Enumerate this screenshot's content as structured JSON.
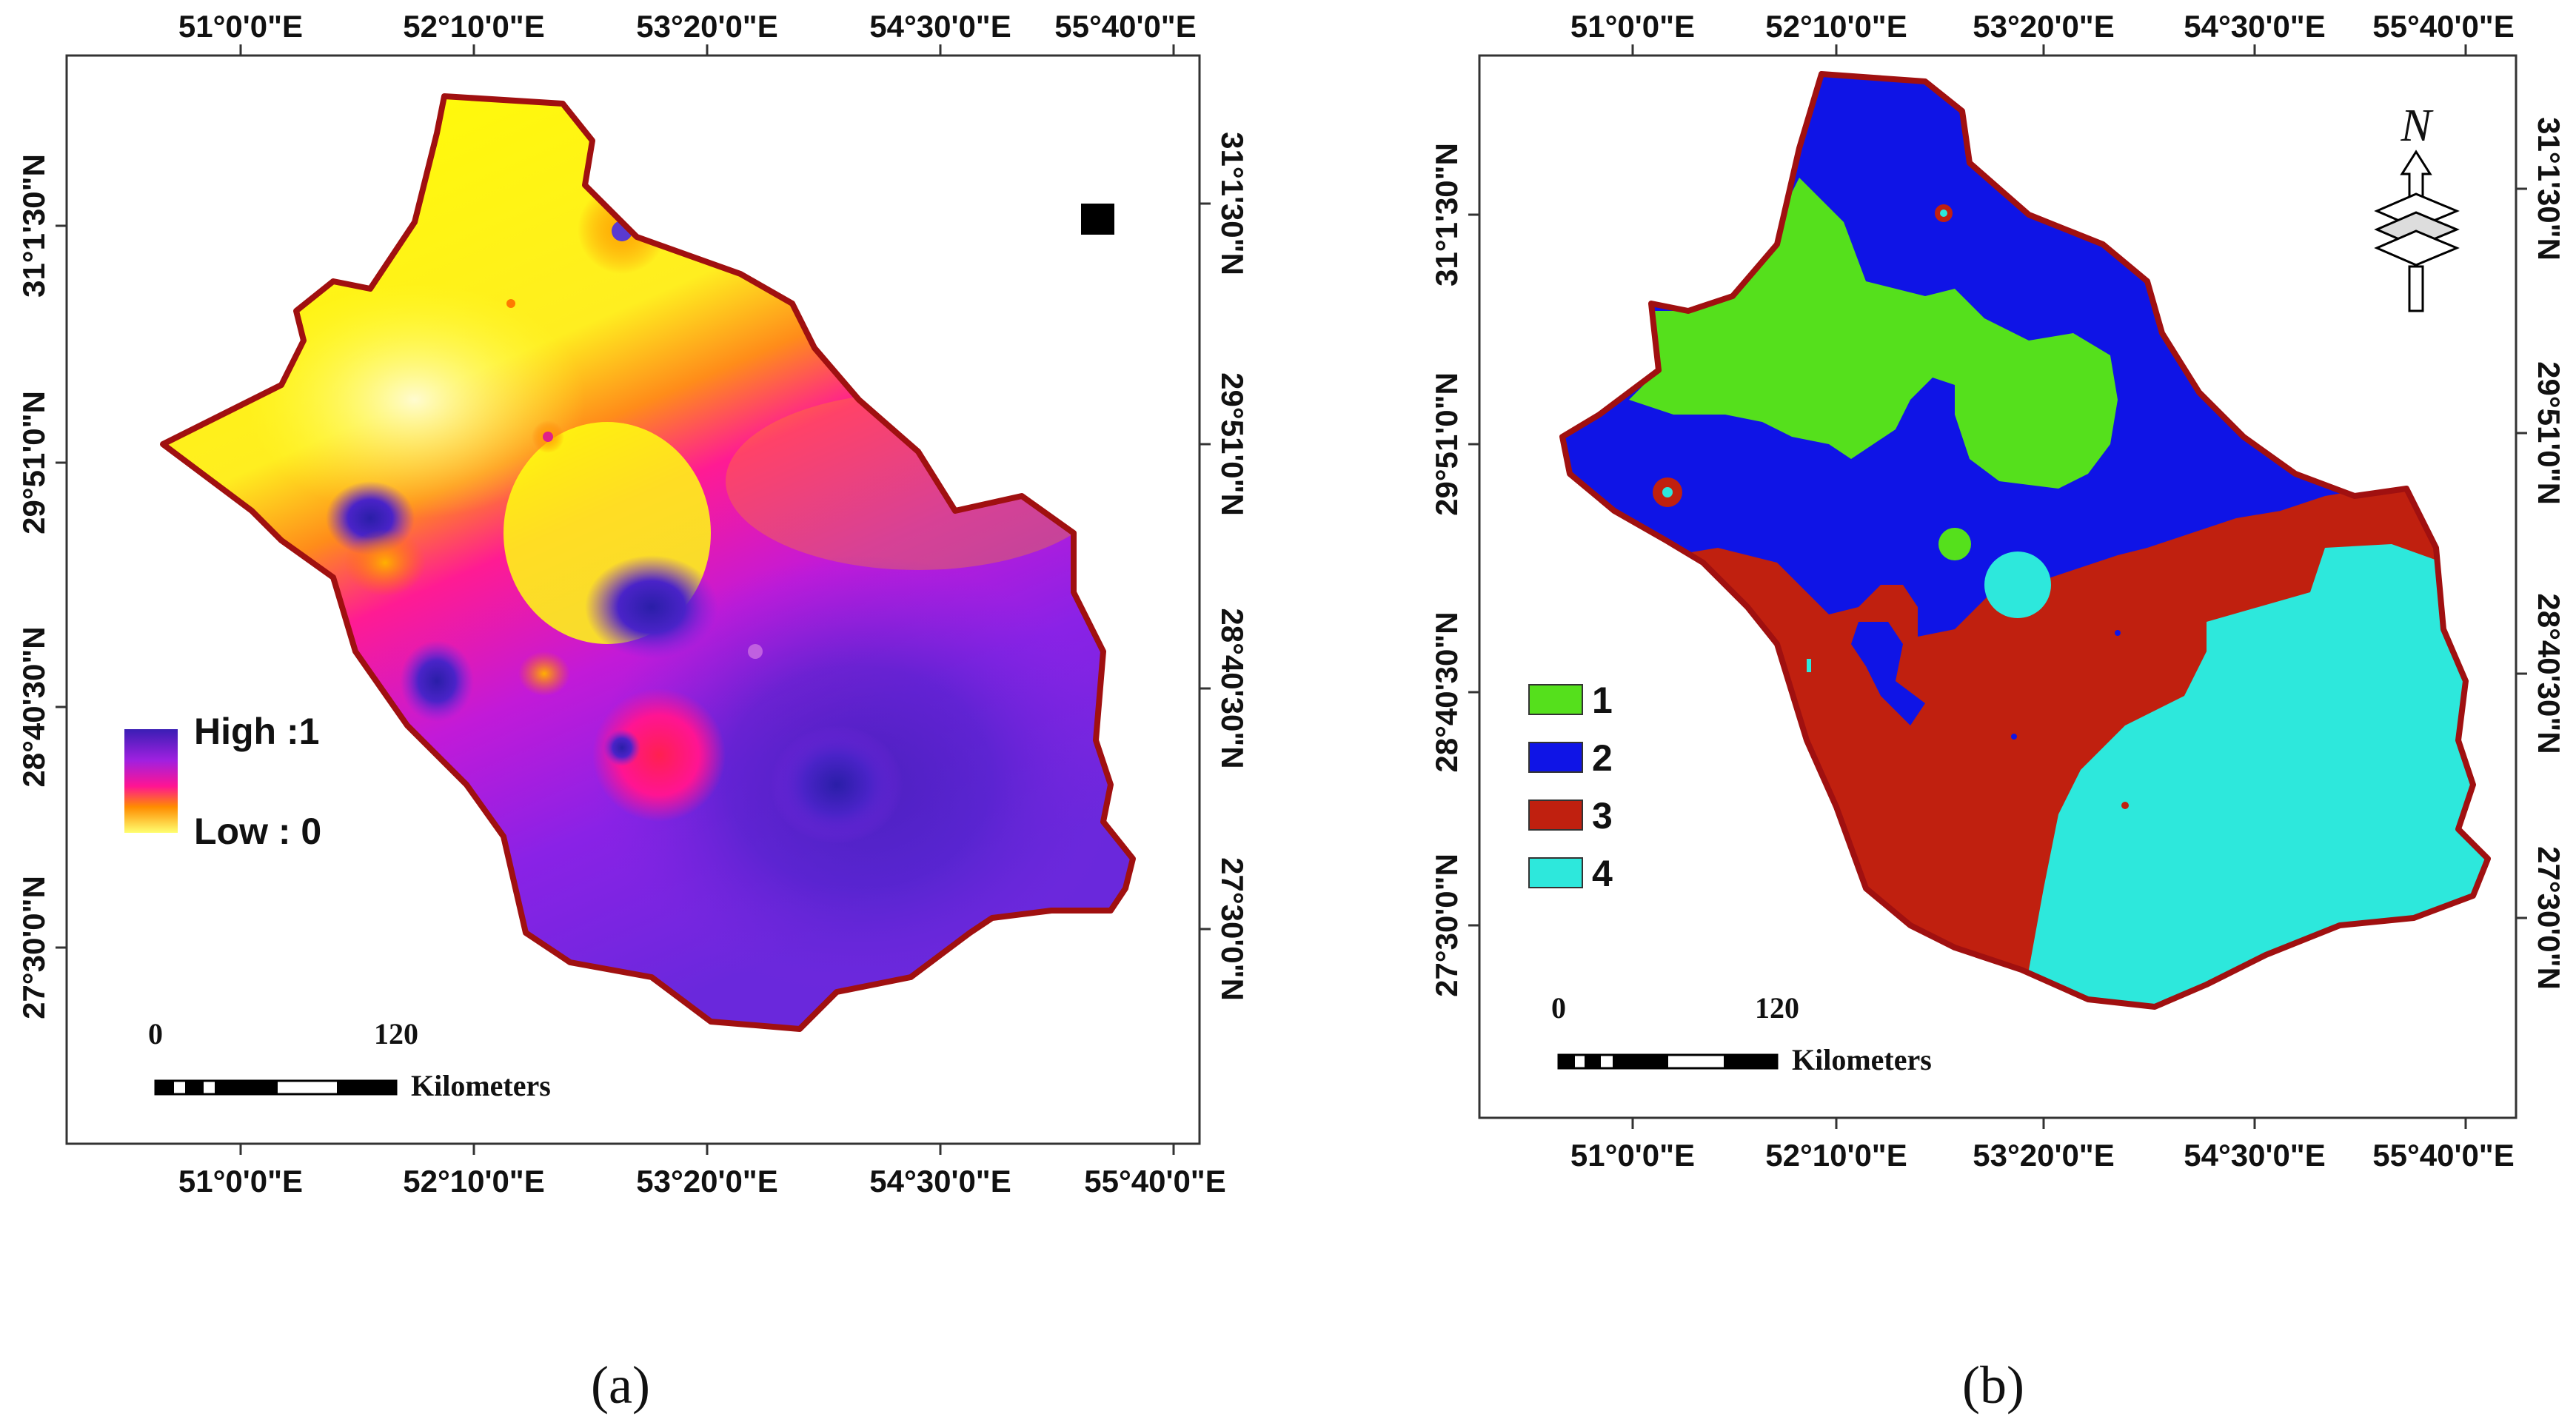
{
  "panel_a": {
    "caption": "(a)",
    "top_lon_labels": [
      "51°0'0\"E",
      "52°10'0\"E",
      "53°20'0\"E",
      "54°30'0\"E",
      "55°40'0\"E"
    ],
    "bottom_lon_labels": [
      "51°0'0\"E",
      "52°10'0\"E",
      "53°20'0\"E",
      "54°30'0\"E",
      "55°40'0\"E"
    ],
    "left_lat_labels": [
      "31°1'30\"N",
      "29°51'0\"N",
      "28°40'30\"N",
      "27°30'0\"N"
    ],
    "right_lat_labels": [
      "31°1'30\"N",
      "29°51'0\"N",
      "28°40'30\"N",
      "27°30'0\"N"
    ],
    "legend": {
      "high": "High :1",
      "low": "Low : 0"
    },
    "scale_bar": {
      "start": "0",
      "end": "120",
      "unit": "Kilometers"
    },
    "colors": {
      "high": "#3a1eb4",
      "mid": "#ff1493",
      "low": "#ffff00",
      "boundary": "#a01010"
    }
  },
  "panel_b": {
    "caption": "(b)",
    "top_lon_labels": [
      "51°0'0\"E",
      "52°10'0\"E",
      "53°20'0\"E",
      "54°30'0\"E",
      "55°40'0\"E"
    ],
    "bottom_lon_labels": [
      "51°0'0\"E",
      "52°10'0\"E",
      "53°20'0\"E",
      "54°30'0\"E",
      "55°40'0\"E"
    ],
    "left_lat_labels": [
      "31°1'30\"N",
      "29°51'0\"N",
      "28°40'30\"N",
      "27°30'0\"N"
    ],
    "right_lat_labels": [
      "31°1'30\"N",
      "29°51'0\"N",
      "28°40'30\"N",
      "27°30'0\"N"
    ],
    "north_arrow": "N",
    "legend_items": [
      {
        "label": "1",
        "color": "#55e01c"
      },
      {
        "label": "2",
        "color": "#0f14e6"
      },
      {
        "label": "3",
        "color": "#c0200f"
      },
      {
        "label": "4",
        "color": "#2de8dc"
      }
    ],
    "scale_bar": {
      "start": "0",
      "end": "120",
      "unit": "Kilometers"
    },
    "colors": {
      "boundary": "#a01010"
    }
  }
}
